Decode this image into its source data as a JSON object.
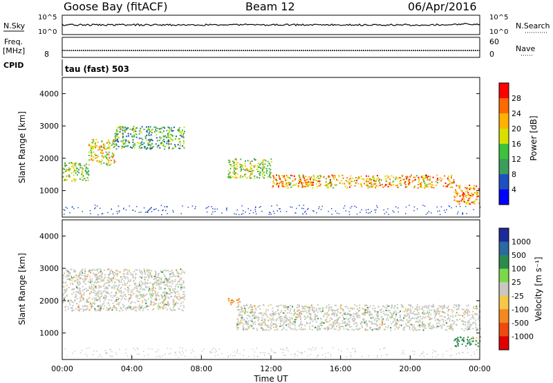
{
  "header": {
    "station": "Goose Bay (fitACF)",
    "beam": "Beam 12",
    "date": "06/Apr/2016"
  },
  "nsky_panel": {
    "label": "N.Sky",
    "left_ticks": [
      "10^5",
      "10^0"
    ],
    "right_ticks": [
      "10^5",
      "10^0"
    ],
    "right_label": "N.Search"
  },
  "freq_panel": {
    "label_line1": "Freq.",
    "label_line2": "[MHz]",
    "left_ticks": [
      "8"
    ],
    "right_ticks": [
      "60",
      "0"
    ],
    "right_label": "Nave"
  },
  "cpid": {
    "label": "CPID",
    "text": "tau (fast) 503"
  },
  "power_panel": {
    "ylabel": "Slant Range [km]",
    "yticks": [
      "4000",
      "3000",
      "2000",
      "1000"
    ],
    "colorbar_label": "Power [dB]",
    "colorbar_ticks": [
      "28",
      "24",
      "20",
      "16",
      "12",
      "8",
      "4"
    ],
    "colorbar_colors": [
      "#ff0000",
      "#ff6a00",
      "#ffb300",
      "#d8e000",
      "#3cc23c",
      "#3b9c5c",
      "#1f4fc0",
      "#0000ff"
    ]
  },
  "velocity_panel": {
    "ylabel": "Slant Range [km]",
    "yticks": [
      "4000",
      "3000",
      "2000",
      "1000"
    ],
    "colorbar_label": "Velocity [m s⁻¹]",
    "colorbar_ticks": [
      "1000",
      "500",
      "100",
      "25",
      "-25",
      "-100",
      "-500",
      "-1000"
    ],
    "colorbar_colors": [
      "#1c2a9a",
      "#2b6a9f",
      "#2d8a4c",
      "#7ad84a",
      "#c8c8c0",
      "#f7c74a",
      "#f48a1e",
      "#ee4a10",
      "#e00000"
    ]
  },
  "xaxis": {
    "label": "Time UT",
    "ticks": [
      "00:00",
      "04:00",
      "08:00",
      "12:00",
      "16:00",
      "20:00",
      "00:00"
    ]
  },
  "chart_data": {
    "type": "heatmap",
    "title": "Goose Bay (fitACF)",
    "xlabel": "Time UT",
    "ylabel": "Slant Range [km]",
    "xlim": [
      0,
      24
    ],
    "ylim": [
      180,
      4500
    ],
    "series": [
      {
        "name": "Power [dB]",
        "colorbar_range": [
          0,
          30
        ],
        "bands": [
          {
            "t0": 0.0,
            "t1": 1.5,
            "r0": 1300,
            "r1": 1900,
            "level": 14
          },
          {
            "t0": 1.5,
            "t1": 3.0,
            "r0": 1800,
            "r1": 2600,
            "level": 18
          },
          {
            "t0": 3.0,
            "t1": 7.0,
            "r0": 2300,
            "r1": 3000,
            "level": 10
          },
          {
            "t0": 9.5,
            "t1": 12.0,
            "r0": 1400,
            "r1": 2000,
            "level": 14
          },
          {
            "t0": 12.0,
            "t1": 22.5,
            "r0": 1100,
            "r1": 1500,
            "level": 20
          },
          {
            "t0": 22.5,
            "t1": 24.0,
            "r0": 600,
            "r1": 1200,
            "level": 22
          }
        ]
      },
      {
        "name": "Velocity [m s⁻¹]",
        "colorbar_range": [
          -1000,
          1000
        ],
        "bands": [
          {
            "t0": 0.0,
            "t1": 7.0,
            "r0": 1700,
            "r1": 3000,
            "level": 0
          },
          {
            "t0": 9.5,
            "t1": 10.2,
            "r0": 1900,
            "r1": 2100,
            "level": -500
          },
          {
            "t0": 10.0,
            "t1": 24.0,
            "r0": 1100,
            "r1": 1900,
            "level": 0
          },
          {
            "t0": 22.5,
            "t1": 24.0,
            "r0": 600,
            "r1": 900,
            "level": 100
          }
        ]
      }
    ]
  }
}
